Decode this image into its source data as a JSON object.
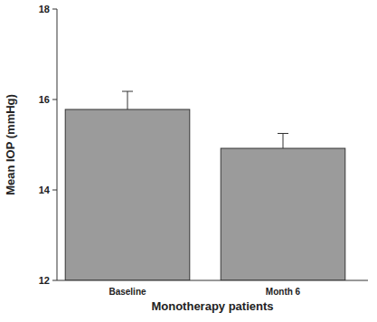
{
  "chart_data": {
    "type": "bar",
    "x_label": "Monotherapy patients",
    "y_label": "Mean IOP (mmHg)",
    "categories": [
      "Baseline",
      "Month 6"
    ],
    "values": [
      15.78,
      14.92
    ],
    "errors": [
      0.4,
      0.33
    ],
    "color": "#9b9b9b",
    "ylim": [
      12,
      18
    ],
    "yticks": [
      12,
      14,
      16,
      18
    ],
    "grid": false
  }
}
